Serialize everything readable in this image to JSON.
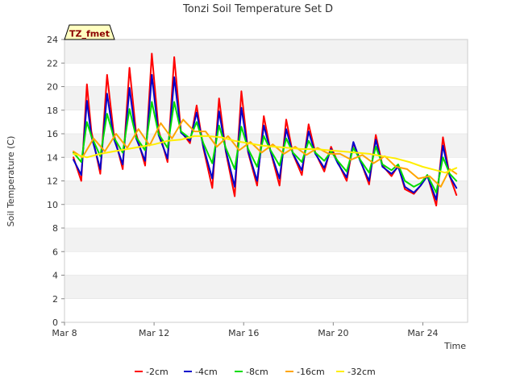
{
  "chart_data": {
    "type": "line",
    "title": "Tonzi Soil Temperature Set D",
    "xlabel": "Time",
    "ylabel": "Soil Temperature (C)",
    "ylim": [
      0,
      24
    ],
    "yticks": [
      0,
      2,
      4,
      6,
      8,
      10,
      12,
      14,
      16,
      18,
      20,
      22,
      24
    ],
    "xlim": [
      0,
      18
    ],
    "x_unit": "days since Mar 8",
    "xticks": [
      {
        "value": 0,
        "label": "Mar 8"
      },
      {
        "value": 4,
        "label": "Mar 12"
      },
      {
        "value": 8,
        "label": "Mar 16"
      },
      {
        "value": 12,
        "label": "Mar 20"
      },
      {
        "value": 16,
        "label": "Mar 24"
      }
    ],
    "grid": "horizontal bands",
    "legend_position": "bottom",
    "annotation": "TZ_fmet",
    "series": [
      {
        "name": "-2cm",
        "color": "#ff0000",
        "x": [
          0.4,
          0.75,
          1.0,
          1.2,
          1.6,
          1.9,
          2.2,
          2.6,
          2.9,
          3.2,
          3.6,
          3.9,
          4.2,
          4.6,
          4.9,
          5.2,
          5.6,
          5.9,
          6.2,
          6.6,
          6.9,
          7.2,
          7.6,
          7.9,
          8.2,
          8.6,
          8.9,
          9.2,
          9.6,
          9.9,
          10.2,
          10.6,
          10.9,
          11.2,
          11.6,
          11.9,
          12.2,
          12.6,
          12.9,
          13.2,
          13.6,
          13.9,
          14.2,
          14.6,
          14.9,
          15.2,
          15.6,
          15.9,
          16.2,
          16.6,
          16.9,
          17.2,
          17.5
        ],
        "y": [
          14.0,
          12.0,
          20.2,
          16.2,
          12.6,
          21.0,
          16.0,
          13.0,
          21.6,
          16.0,
          13.3,
          22.8,
          16.3,
          13.6,
          22.5,
          16.2,
          15.2,
          18.4,
          14.8,
          11.4,
          19.0,
          14.5,
          10.7,
          19.6,
          14.4,
          11.6,
          17.5,
          14.5,
          11.6,
          17.2,
          14.3,
          12.5,
          16.8,
          14.4,
          12.8,
          14.9,
          13.6,
          12.0,
          15.2,
          13.8,
          11.7,
          15.9,
          13.3,
          12.4,
          13.3,
          11.3,
          10.9,
          11.6,
          12.5,
          9.9,
          15.7,
          12.4,
          10.8
        ]
      },
      {
        "name": "-4cm",
        "color": "#0000cc",
        "x": [
          0.4,
          0.75,
          1.0,
          1.2,
          1.6,
          1.9,
          2.2,
          2.6,
          2.9,
          3.2,
          3.6,
          3.9,
          4.2,
          4.6,
          4.9,
          5.2,
          5.6,
          5.9,
          6.2,
          6.6,
          6.9,
          7.2,
          7.6,
          7.9,
          8.2,
          8.6,
          8.9,
          9.2,
          9.6,
          9.9,
          10.2,
          10.6,
          10.9,
          11.2,
          11.6,
          11.9,
          12.2,
          12.6,
          12.9,
          13.2,
          13.6,
          13.9,
          14.2,
          14.6,
          14.9,
          15.2,
          15.6,
          15.9,
          16.2,
          16.6,
          16.9,
          17.2,
          17.5
        ],
        "y": [
          13.8,
          12.5,
          18.8,
          15.8,
          13.0,
          19.4,
          15.6,
          13.4,
          19.9,
          15.6,
          13.7,
          21.0,
          15.9,
          13.9,
          20.8,
          16.1,
          15.4,
          17.8,
          14.9,
          12.2,
          17.9,
          14.6,
          11.5,
          18.2,
          14.5,
          12.0,
          16.7,
          14.5,
          12.2,
          16.4,
          14.3,
          12.9,
          16.2,
          14.3,
          13.1,
          14.7,
          13.5,
          12.3,
          15.3,
          13.7,
          12.0,
          15.5,
          13.2,
          12.6,
          13.2,
          11.5,
          11.0,
          11.6,
          12.4,
          10.4,
          15.0,
          12.4,
          11.4
        ]
      },
      {
        "name": "-8cm",
        "color": "#00dd00",
        "x": [
          0.4,
          0.75,
          1.0,
          1.2,
          1.6,
          1.9,
          2.2,
          2.6,
          2.9,
          3.2,
          3.6,
          3.9,
          4.2,
          4.6,
          4.9,
          5.2,
          5.6,
          5.9,
          6.2,
          6.6,
          6.9,
          7.2,
          7.6,
          7.9,
          8.2,
          8.6,
          8.9,
          9.2,
          9.6,
          9.9,
          10.2,
          10.6,
          10.9,
          11.2,
          11.6,
          11.9,
          12.2,
          12.6,
          12.9,
          13.2,
          13.6,
          13.9,
          14.2,
          14.6,
          14.9,
          15.2,
          15.6,
          15.9,
          16.2,
          16.6,
          16.9,
          17.2,
          17.5
        ],
        "y": [
          14.4,
          13.6,
          17.0,
          15.8,
          14.1,
          17.7,
          15.7,
          14.4,
          18.1,
          15.7,
          14.6,
          18.7,
          16.0,
          14.8,
          18.7,
          16.2,
          15.6,
          17.0,
          15.2,
          13.5,
          16.7,
          14.8,
          13.0,
          16.6,
          14.7,
          13.2,
          15.8,
          14.6,
          13.3,
          15.6,
          14.4,
          13.6,
          15.4,
          14.4,
          13.7,
          14.5,
          13.7,
          12.8,
          14.8,
          13.8,
          12.7,
          14.9,
          13.4,
          12.9,
          13.4,
          12.0,
          11.5,
          11.8,
          12.5,
          11.0,
          14.0,
          12.6,
          12.0
        ]
      },
      {
        "name": "-16cm",
        "color": "#ffa500",
        "x": [
          0.4,
          0.8,
          1.3,
          1.8,
          2.3,
          2.8,
          3.3,
          3.8,
          4.3,
          4.8,
          5.3,
          5.8,
          6.3,
          6.8,
          7.3,
          7.8,
          8.3,
          8.8,
          9.3,
          9.8,
          10.3,
          10.8,
          11.3,
          11.8,
          12.3,
          12.8,
          13.3,
          13.8,
          14.3,
          14.8,
          15.3,
          15.8,
          16.3,
          16.8,
          17.2,
          17.5
        ],
        "y": [
          14.5,
          14.0,
          15.6,
          14.5,
          16.0,
          14.8,
          16.4,
          15.0,
          16.9,
          15.6,
          17.2,
          16.2,
          16.2,
          14.9,
          15.8,
          14.6,
          15.3,
          14.4,
          15.1,
          14.3,
          14.9,
          14.2,
          14.8,
          14.3,
          14.3,
          13.8,
          14.2,
          13.5,
          14.1,
          13.2,
          13.0,
          12.2,
          12.4,
          11.5,
          13.0,
          12.6
        ]
      },
      {
        "name": "-32cm",
        "color": "#ffee00",
        "x": [
          0.4,
          1.0,
          1.6,
          2.2,
          2.8,
          3.4,
          4.0,
          4.6,
          5.2,
          5.8,
          6.4,
          7.0,
          7.6,
          8.2,
          8.8,
          9.4,
          10.0,
          10.6,
          11.2,
          11.8,
          12.4,
          13.0,
          13.6,
          14.2,
          14.8,
          15.4,
          16.0,
          16.6,
          17.0,
          17.5
        ],
        "y": [
          14.3,
          14.0,
          14.3,
          14.5,
          14.7,
          14.9,
          15.1,
          15.4,
          15.5,
          15.8,
          15.8,
          15.7,
          15.4,
          15.2,
          15.0,
          14.9,
          14.8,
          14.7,
          14.7,
          14.6,
          14.5,
          14.4,
          14.3,
          14.1,
          13.9,
          13.6,
          13.2,
          12.9,
          12.7,
          13.1
        ]
      }
    ]
  }
}
